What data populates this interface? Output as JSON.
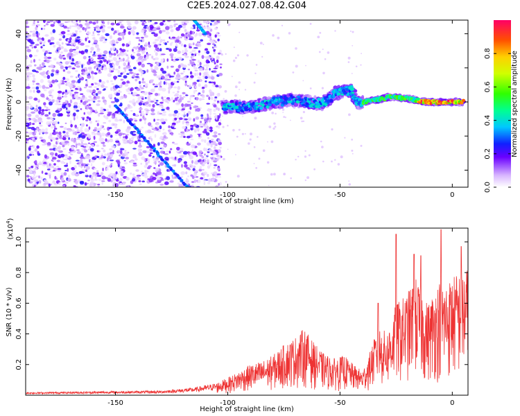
{
  "title": "C2E5.2024.027.08.42.G04",
  "chart_data": [
    {
      "type": "heatmap",
      "xlabel": "Height of straight line (km)",
      "ylabel": "Frequency (Hz)",
      "xlim": [
        -190,
        7
      ],
      "ylim": [
        -50,
        48
      ],
      "xticks": [
        -150,
        -100,
        -50,
        0
      ],
      "yticks": [
        -40,
        -20,
        0,
        20,
        40
      ],
      "colorbar": {
        "label": "Normalized spectral amplitude",
        "range": [
          0,
          1
        ],
        "ticks": [
          "0.0",
          "0.2",
          "0.4",
          "0.6",
          "0.8"
        ],
        "tick_values": [
          0,
          0.2,
          0.4,
          0.6,
          0.8
        ],
        "colormap": "rainbow-white-to-red"
      },
      "features": {
        "noise_region_x": [
          -190,
          -103
        ],
        "signal_track": [
          {
            "x": -102,
            "y": -3
          },
          {
            "x": -95,
            "y": -3
          },
          {
            "x": -88,
            "y": -3
          },
          {
            "x": -80,
            "y": 0
          },
          {
            "x": -72,
            "y": 1
          },
          {
            "x": -64,
            "y": 0
          },
          {
            "x": -58,
            "y": -1
          },
          {
            "x": -52,
            "y": 5
          },
          {
            "x": -45,
            "y": 7
          },
          {
            "x": -42,
            "y": -1
          },
          {
            "x": -35,
            "y": 1
          },
          {
            "x": -28,
            "y": 3
          },
          {
            "x": -20,
            "y": 2
          },
          {
            "x": -12,
            "y": 0
          },
          {
            "x": -5,
            "y": 0
          },
          {
            "x": 5,
            "y": 0
          }
        ],
        "diagonal_track": [
          {
            "x": -150,
            "y": -2
          },
          {
            "x": -118,
            "y": -50
          }
        ],
        "upper_track": [
          {
            "x": -115,
            "y": 48
          },
          {
            "x": -110,
            "y": 40
          }
        ]
      }
    },
    {
      "type": "line",
      "xlabel": "Height of straight line (km)",
      "ylabel": "SNR (10 * v/v)",
      "y_multiplier": "(x10",
      "y_multiplier_exp": "4",
      "y_multiplier_close": ")",
      "xlim": [
        -190,
        7
      ],
      "ylim": [
        0,
        1.09
      ],
      "xticks": [
        -150,
        -100,
        -50,
        0
      ],
      "yticks": [
        0.2,
        0.4,
        0.6,
        0.8,
        1.0
      ],
      "ytick_labels": [
        "0.2",
        "0.4",
        "0.6",
        "0.8",
        "1.0"
      ],
      "series": [
        {
          "color": "#ee3333",
          "envelope": [
            {
              "x": -190,
              "y": 0.02
            },
            {
              "x": -130,
              "y": 0.03
            },
            {
              "x": -115,
              "y": 0.05
            },
            {
              "x": -105,
              "y": 0.08
            },
            {
              "x": -98,
              "y": 0.13
            },
            {
              "x": -90,
              "y": 0.2
            },
            {
              "x": -85,
              "y": 0.22
            },
            {
              "x": -80,
              "y": 0.26
            },
            {
              "x": -75,
              "y": 0.33
            },
            {
              "x": -70,
              "y": 0.38
            },
            {
              "x": -66,
              "y": 0.44
            },
            {
              "x": -62,
              "y": 0.35
            },
            {
              "x": -58,
              "y": 0.28
            },
            {
              "x": -53,
              "y": 0.24
            },
            {
              "x": -48,
              "y": 0.26
            },
            {
              "x": -44,
              "y": 0.2
            },
            {
              "x": -40,
              "y": 0.16
            },
            {
              "x": -37,
              "y": 0.27
            },
            {
              "x": -33,
              "y": 0.45
            },
            {
              "x": -29,
              "y": 0.41
            },
            {
              "x": -25,
              "y": 0.6
            },
            {
              "x": -21,
              "y": 0.65
            },
            {
              "x": -16,
              "y": 0.77
            },
            {
              "x": -11,
              "y": 0.6
            },
            {
              "x": -6,
              "y": 0.75
            },
            {
              "x": -3,
              "y": 0.74
            },
            {
              "x": 2,
              "y": 0.8
            },
            {
              "x": 7,
              "y": 0.84
            }
          ],
          "peaks": [
            {
              "x": -25,
              "y": 1.05
            },
            {
              "x": -5,
              "y": 1.08
            },
            {
              "x": 4,
              "y": 0.97
            },
            {
              "x": -17,
              "y": 0.92
            },
            {
              "x": -14,
              "y": 0.91
            },
            {
              "x": -33,
              "y": 0.6
            }
          ]
        }
      ]
    }
  ]
}
